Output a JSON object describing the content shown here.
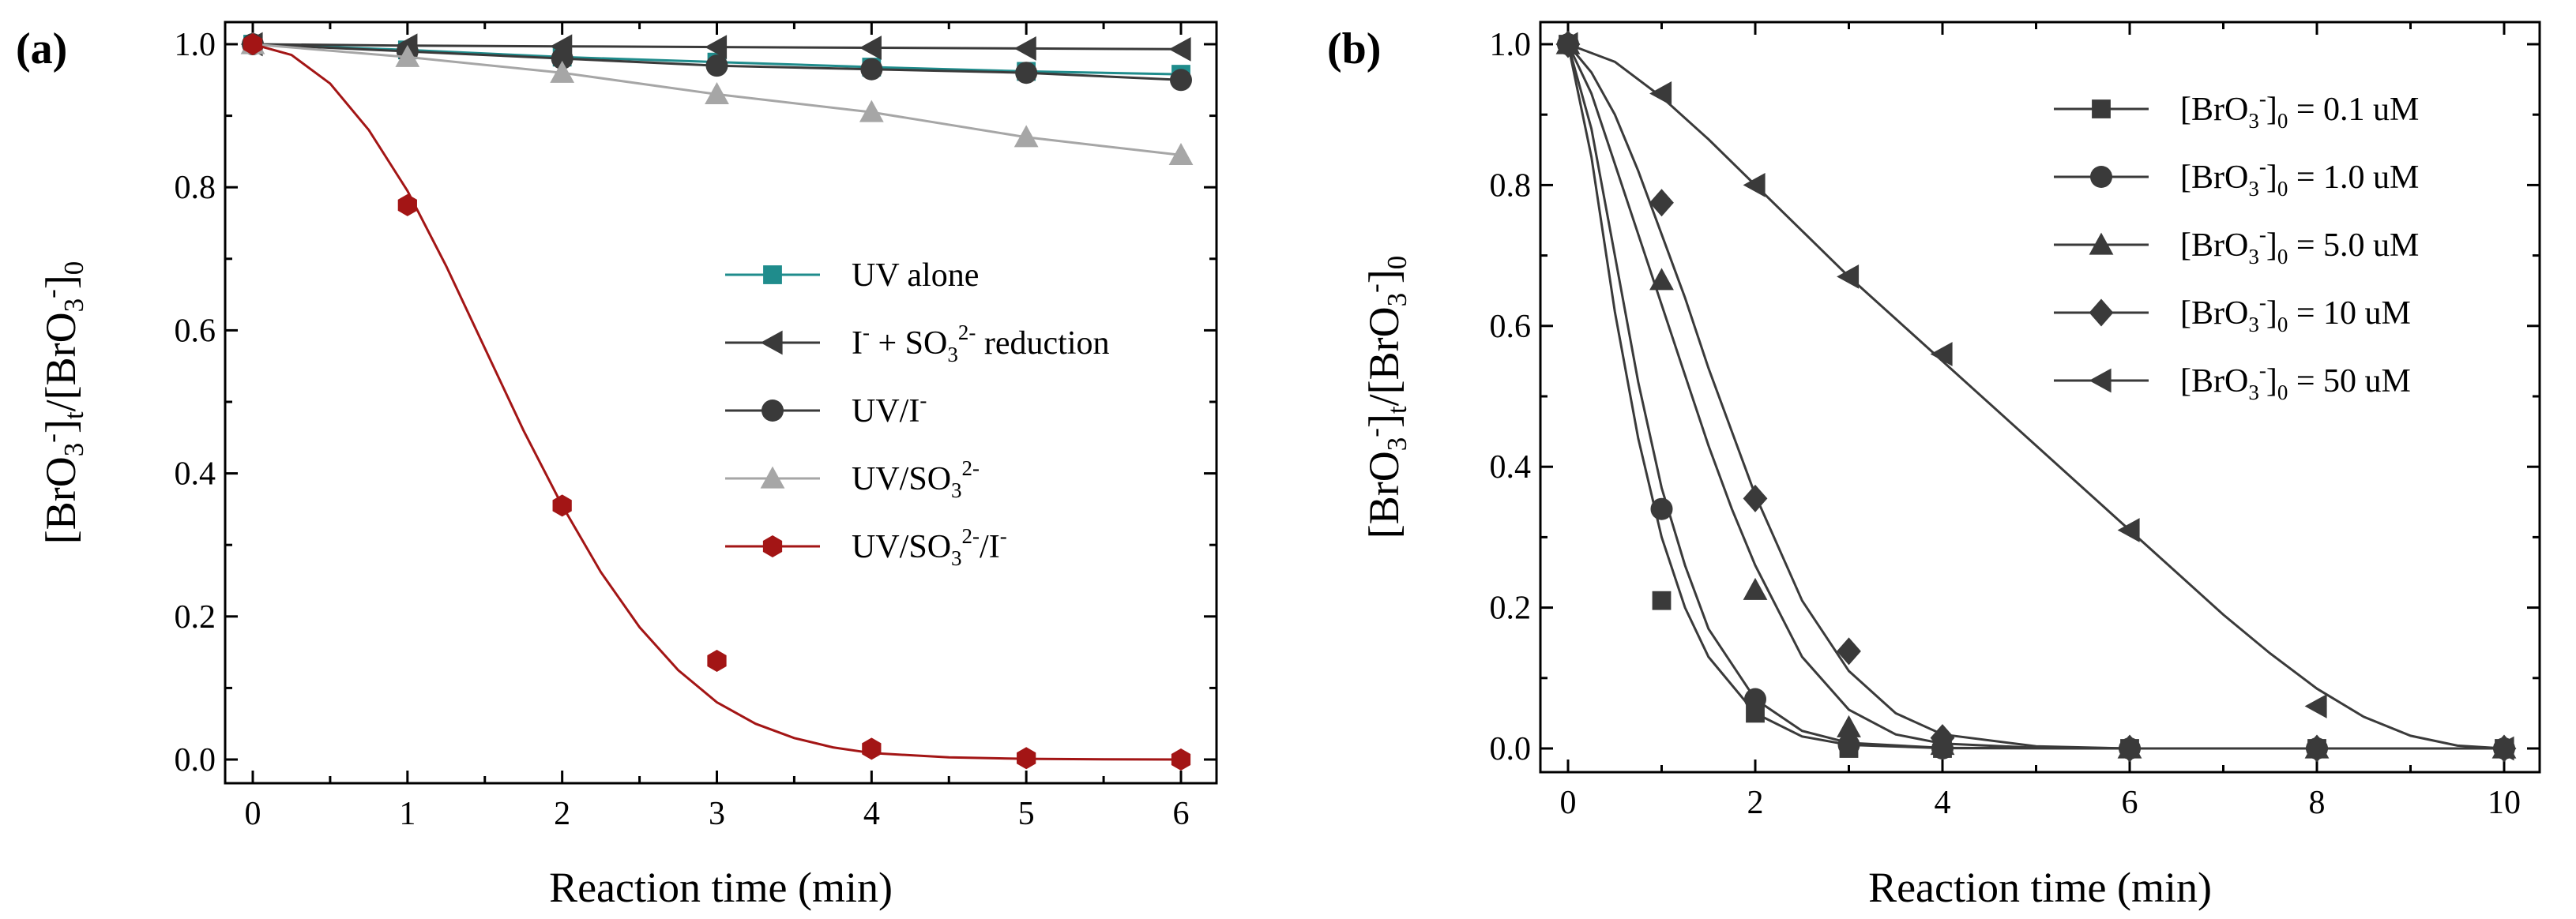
{
  "chart_data": [
    {
      "type": "line",
      "panel_label": "(a)",
      "xlabel": "Reaction time (min)",
      "ylabel": {
        "base": "[BrO",
        "sub1": "3",
        "sup1": "-",
        "mid": "]",
        "sub2": "t",
        "slash": "/[BrO",
        "sub3": "3",
        "sup3": "-",
        "end": "]",
        "sub4": "0"
      },
      "xlim": [
        0,
        6
      ],
      "ylim": [
        0,
        1.0
      ],
      "xticks": [
        "0",
        "1",
        "2",
        "3",
        "4",
        "5",
        "6"
      ],
      "yticks": [
        "0.0",
        "0.2",
        "0.4",
        "0.6",
        "0.8",
        "1.0"
      ],
      "legend_position": "center-right",
      "series": [
        {
          "name": "UV alone",
          "legend": {
            "parts": [
              {
                "t": "UV alone"
              }
            ]
          },
          "marker": "square",
          "color": "#1f8c8c",
          "x": [
            0,
            1,
            2,
            3,
            4,
            5,
            6
          ],
          "values": [
            1.0,
            0.992,
            0.982,
            0.975,
            0.968,
            0.962,
            0.958
          ]
        },
        {
          "name": "I- + SO32- reduction",
          "legend": {
            "parts": [
              {
                "t": "I"
              },
              {
                "t": "-",
                "sup": true
              },
              {
                "t": " + SO"
              },
              {
                "t": "3",
                "sub": true
              },
              {
                "t": "2-",
                "sup": true
              },
              {
                "t": " reduction"
              }
            ]
          },
          "marker": "triangle-left",
          "color": "#3a3a3a",
          "x": [
            0,
            1,
            2,
            3,
            4,
            5,
            6
          ],
          "values": [
            1.0,
            0.998,
            0.997,
            0.996,
            0.995,
            0.994,
            0.993
          ]
        },
        {
          "name": "UV/I-",
          "legend": {
            "parts": [
              {
                "t": "UV/I"
              },
              {
                "t": "-",
                "sup": true
              }
            ]
          },
          "marker": "circle",
          "color": "#3a3a3a",
          "x": [
            0,
            1,
            2,
            3,
            4,
            5,
            6
          ],
          "values": [
            1.0,
            0.99,
            0.98,
            0.97,
            0.965,
            0.96,
            0.95
          ]
        },
        {
          "name": "UV/SO32-",
          "legend": {
            "parts": [
              {
                "t": "UV/SO"
              },
              {
                "t": "3",
                "sub": true
              },
              {
                "t": "2-",
                "sup": true
              }
            ]
          },
          "marker": "triangle-up",
          "color": "#a6a6a6",
          "x": [
            0,
            1,
            2,
            3,
            4,
            5,
            6
          ],
          "values": [
            1.0,
            0.982,
            0.96,
            0.93,
            0.905,
            0.87,
            0.845
          ]
        },
        {
          "name": "UV/SO32-/I-",
          "legend": {
            "parts": [
              {
                "t": "UV/SO"
              },
              {
                "t": "3",
                "sub": true
              },
              {
                "t": "2-",
                "sup": true
              },
              {
                "t": "/I"
              },
              {
                "t": "-",
                "sup": true
              }
            ]
          },
          "marker": "hexagon",
          "color": "#a31515",
          "x": [
            0,
            1,
            2,
            3,
            4,
            5,
            6
          ],
          "values": [
            1.0,
            0.775,
            0.355,
            0.138,
            0.015,
            0.002,
            0.0
          ],
          "fit": [
            [
              0,
              1.0
            ],
            [
              0.25,
              0.985
            ],
            [
              0.5,
              0.945
            ],
            [
              0.75,
              0.88
            ],
            [
              1,
              0.795
            ],
            [
              1.25,
              0.69
            ],
            [
              1.5,
              0.575
            ],
            [
              1.75,
              0.46
            ],
            [
              2,
              0.355
            ],
            [
              2.25,
              0.262
            ],
            [
              2.5,
              0.185
            ],
            [
              2.75,
              0.125
            ],
            [
              3,
              0.08
            ],
            [
              3.25,
              0.05
            ],
            [
              3.5,
              0.03
            ],
            [
              3.75,
              0.017
            ],
            [
              4,
              0.009
            ],
            [
              4.5,
              0.003
            ],
            [
              5,
              0.001
            ],
            [
              5.5,
              0.0003
            ],
            [
              6,
              0.0
            ]
          ]
        }
      ]
    },
    {
      "type": "line",
      "panel_label": "(b)",
      "xlabel": "Reaction time (min)",
      "ylabel": {
        "base": "[BrO",
        "sub1": "3",
        "sup1": "-",
        "mid": "]",
        "sub2": "t",
        "slash": "/[BrO",
        "sub3": "3",
        "sup3": "-",
        "end": "]",
        "sub4": "0"
      },
      "xlim": [
        0,
        10
      ],
      "ylim": [
        0,
        1.0
      ],
      "xticks": [
        "0",
        "2",
        "4",
        "6",
        "8",
        "10"
      ],
      "yticks": [
        "0.0",
        "0.2",
        "0.4",
        "0.6",
        "0.8",
        "1.0"
      ],
      "legend_position": "top-right",
      "series": [
        {
          "name": "[BrO3-]0 = 0.1 uM",
          "legend": {
            "parts": [
              {
                "t": "[BrO"
              },
              {
                "t": "3",
                "sub": true
              },
              {
                "t": "-",
                "sup": true
              },
              {
                "t": "]"
              },
              {
                "t": "0",
                "sub": true
              },
              {
                "t": " = 0.1 uM"
              }
            ]
          },
          "marker": "square",
          "color": "#3a3a3a",
          "x": [
            0,
            1,
            2,
            3,
            4,
            6,
            8,
            10
          ],
          "values": [
            1.0,
            0.21,
            0.05,
            0.0,
            0.0,
            0.0,
            0.0,
            0.0
          ],
          "fit": [
            [
              0,
              1.0
            ],
            [
              0.25,
              0.84
            ],
            [
              0.5,
              0.62
            ],
            [
              0.75,
              0.44
            ],
            [
              1,
              0.3
            ],
            [
              1.25,
              0.2
            ],
            [
              1.5,
              0.13
            ],
            [
              2,
              0.05
            ],
            [
              2.5,
              0.017
            ],
            [
              3,
              0.005
            ],
            [
              4,
              0.0005
            ],
            [
              6,
              0.0
            ],
            [
              8,
              0.0
            ],
            [
              10,
              0.0
            ]
          ]
        },
        {
          "name": "[BrO3-]0 = 1.0 uM",
          "legend": {
            "parts": [
              {
                "t": "[BrO"
              },
              {
                "t": "3",
                "sub": true
              },
              {
                "t": "-",
                "sup": true
              },
              {
                "t": "]"
              },
              {
                "t": "0",
                "sub": true
              },
              {
                "t": " = 1.0 uM"
              }
            ]
          },
          "marker": "circle",
          "color": "#3a3a3a",
          "x": [
            0,
            1,
            2,
            3,
            4,
            6,
            8,
            10
          ],
          "values": [
            1.0,
            0.34,
            0.07,
            0.005,
            0.0,
            0.0,
            0.0,
            0.0
          ],
          "fit": [
            [
              0,
              1.0
            ],
            [
              0.25,
              0.88
            ],
            [
              0.5,
              0.7
            ],
            [
              0.75,
              0.52
            ],
            [
              1,
              0.37
            ],
            [
              1.25,
              0.26
            ],
            [
              1.5,
              0.17
            ],
            [
              2,
              0.07
            ],
            [
              2.5,
              0.025
            ],
            [
              3,
              0.008
            ],
            [
              4,
              0.0008
            ],
            [
              6,
              0.0
            ],
            [
              8,
              0.0
            ],
            [
              10,
              0.0
            ]
          ]
        },
        {
          "name": "[BrO3-]0 = 5.0 uM",
          "legend": {
            "parts": [
              {
                "t": "[BrO"
              },
              {
                "t": "3",
                "sub": true
              },
              {
                "t": "-",
                "sup": true
              },
              {
                "t": "]"
              },
              {
                "t": "0",
                "sub": true
              },
              {
                "t": " = 5.0 uM"
              }
            ]
          },
          "marker": "triangle-up",
          "color": "#3a3a3a",
          "x": [
            0,
            1,
            2,
            3,
            4,
            6,
            8,
            10
          ],
          "values": [
            1.0,
            0.665,
            0.225,
            0.03,
            0.005,
            0.0,
            0.0,
            0.0
          ],
          "fit": [
            [
              0,
              1.0
            ],
            [
              0.25,
              0.93
            ],
            [
              0.5,
              0.83
            ],
            [
              0.75,
              0.73
            ],
            [
              1,
              0.63
            ],
            [
              1.25,
              0.53
            ],
            [
              1.5,
              0.43
            ],
            [
              1.75,
              0.34
            ],
            [
              2,
              0.26
            ],
            [
              2.5,
              0.13
            ],
            [
              3,
              0.055
            ],
            [
              3.5,
              0.02
            ],
            [
              4,
              0.007
            ],
            [
              5,
              0.001
            ],
            [
              6,
              0.0
            ],
            [
              8,
              0.0
            ],
            [
              10,
              0.0
            ]
          ]
        },
        {
          "name": "[BrO3-]0 = 10 uM",
          "legend": {
            "parts": [
              {
                "t": "[BrO"
              },
              {
                "t": "3",
                "sub": true
              },
              {
                "t": "-",
                "sup": true
              },
              {
                "t": "]"
              },
              {
                "t": "0",
                "sub": true
              },
              {
                "t": " = 10 uM"
              }
            ]
          },
          "marker": "diamond",
          "color": "#3a3a3a",
          "x": [
            0,
            1,
            2,
            3,
            4,
            6,
            8,
            10
          ],
          "values": [
            1.0,
            0.775,
            0.355,
            0.138,
            0.015,
            0.0,
            0.0,
            0.0
          ],
          "fit": [
            [
              0,
              1.0
            ],
            [
              0.25,
              0.96
            ],
            [
              0.5,
              0.9
            ],
            [
              0.75,
              0.82
            ],
            [
              1,
              0.73
            ],
            [
              1.25,
              0.64
            ],
            [
              1.5,
              0.54
            ],
            [
              1.75,
              0.45
            ],
            [
              2,
              0.36
            ],
            [
              2.5,
              0.21
            ],
            [
              3,
              0.11
            ],
            [
              3.5,
              0.05
            ],
            [
              4,
              0.02
            ],
            [
              5,
              0.003
            ],
            [
              6,
              0.0
            ],
            [
              8,
              0.0
            ],
            [
              10,
              0.0
            ]
          ]
        },
        {
          "name": "[BrO3-]0 = 50 uM",
          "legend": {
            "parts": [
              {
                "t": "[BrO"
              },
              {
                "t": "3",
                "sub": true
              },
              {
                "t": "-",
                "sup": true
              },
              {
                "t": "]"
              },
              {
                "t": "0",
                "sub": true
              },
              {
                "t": " = 50 uM"
              }
            ]
          },
          "marker": "triangle-left",
          "color": "#3a3a3a",
          "x": [
            0,
            1,
            2,
            3,
            4,
            6,
            8,
            10
          ],
          "values": [
            1.0,
            0.93,
            0.8,
            0.67,
            0.56,
            0.31,
            0.06,
            0.0
          ],
          "fit": [
            [
              0,
              1.0
            ],
            [
              0.5,
              0.975
            ],
            [
              1,
              0.925
            ],
            [
              1.5,
              0.865
            ],
            [
              2,
              0.8
            ],
            [
              2.5,
              0.735
            ],
            [
              3,
              0.67
            ],
            [
              3.5,
              0.61
            ],
            [
              4,
              0.55
            ],
            [
              4.5,
              0.49
            ],
            [
              5,
              0.43
            ],
            [
              5.5,
              0.37
            ],
            [
              6,
              0.31
            ],
            [
              6.5,
              0.25
            ],
            [
              7,
              0.19
            ],
            [
              7.5,
              0.135
            ],
            [
              8,
              0.085
            ],
            [
              8.5,
              0.045
            ],
            [
              9,
              0.018
            ],
            [
              9.5,
              0.004
            ],
            [
              10,
              0.0
            ]
          ]
        }
      ]
    }
  ]
}
